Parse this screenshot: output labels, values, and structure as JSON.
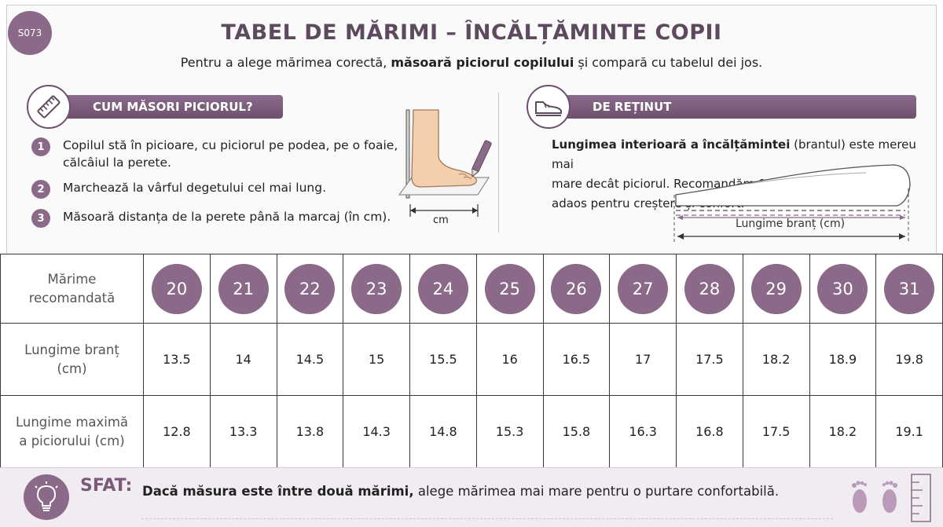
{
  "code": "S073",
  "title": "TABEL DE MĂRIMI – ÎNCĂLȚĂMINTE COPII",
  "subtitle": {
    "pre": "Pentru a alege mărimea corectă, ",
    "bold": "măsoară piciorul copilului",
    "post": " și compară cu tabelul dei jos."
  },
  "measure_section": {
    "title": "CUM MĂSORI PICIORUL?",
    "icon": "ruler-icon",
    "steps": [
      {
        "num": "1",
        "text_line1": "Copilul stă în picioare, cu piciorul pe podea, pe o foaie,",
        "text_line2": "călcâiul la perete."
      },
      {
        "num": "2",
        "text_line1": "Marchează la vârful degetului cel mai lung.",
        "text_line2": ""
      },
      {
        "num": "3",
        "text_line1": "Măsoară distanța de la perete până la marcaj (în cm).",
        "text_line2": ""
      }
    ],
    "illustration_label": "cm"
  },
  "remember_section": {
    "title": "DE REȚINUT",
    "icon": "shoe-icon",
    "text_bold": "Lungimea interioară a încălțămintei",
    "text_line1_rest": " (brantul) este mereu mai",
    "text_line2": "mare decât piciorul. Recomandăm 0,5–0,7 cm",
    "text_line3": "adaos pentru creștere și confort.",
    "illustration_label": "Lungime branț (cm)"
  },
  "table": {
    "row1_label_line1": "Mărime",
    "row1_label_line2": "recomandată",
    "row2_label_line1": "Lungime branț",
    "row2_label_line2": "(cm)",
    "row3_label_line1": "Lungime maximă",
    "row3_label_line2": "a piciorului (cm)",
    "sizes": [
      "20",
      "21",
      "22",
      "23",
      "24",
      "25",
      "26",
      "27",
      "28",
      "29",
      "30",
      "31"
    ],
    "insole_cm": [
      "13.5",
      "14",
      "14.5",
      "15",
      "15.5",
      "16",
      "16.5",
      "17",
      "17.5",
      "18.2",
      "18.9",
      "19.8"
    ],
    "foot_max_cm": [
      "12.8",
      "13.3",
      "13.8",
      "14.3",
      "14.8",
      "15.3",
      "15.8",
      "16.3",
      "16.8",
      "17.5",
      "18.2",
      "19.1"
    ]
  },
  "tip": {
    "label": "SFAT:",
    "bold": "Dacă măsura este între două mărimi,",
    "rest": " alege mărimea mai mare pentru o purtare confortabilă.",
    "icon": "lightbulb-icon"
  },
  "colors": {
    "accent": "#8a6a88",
    "accent_dark": "#6d506d",
    "title": "#5e4a5e"
  }
}
